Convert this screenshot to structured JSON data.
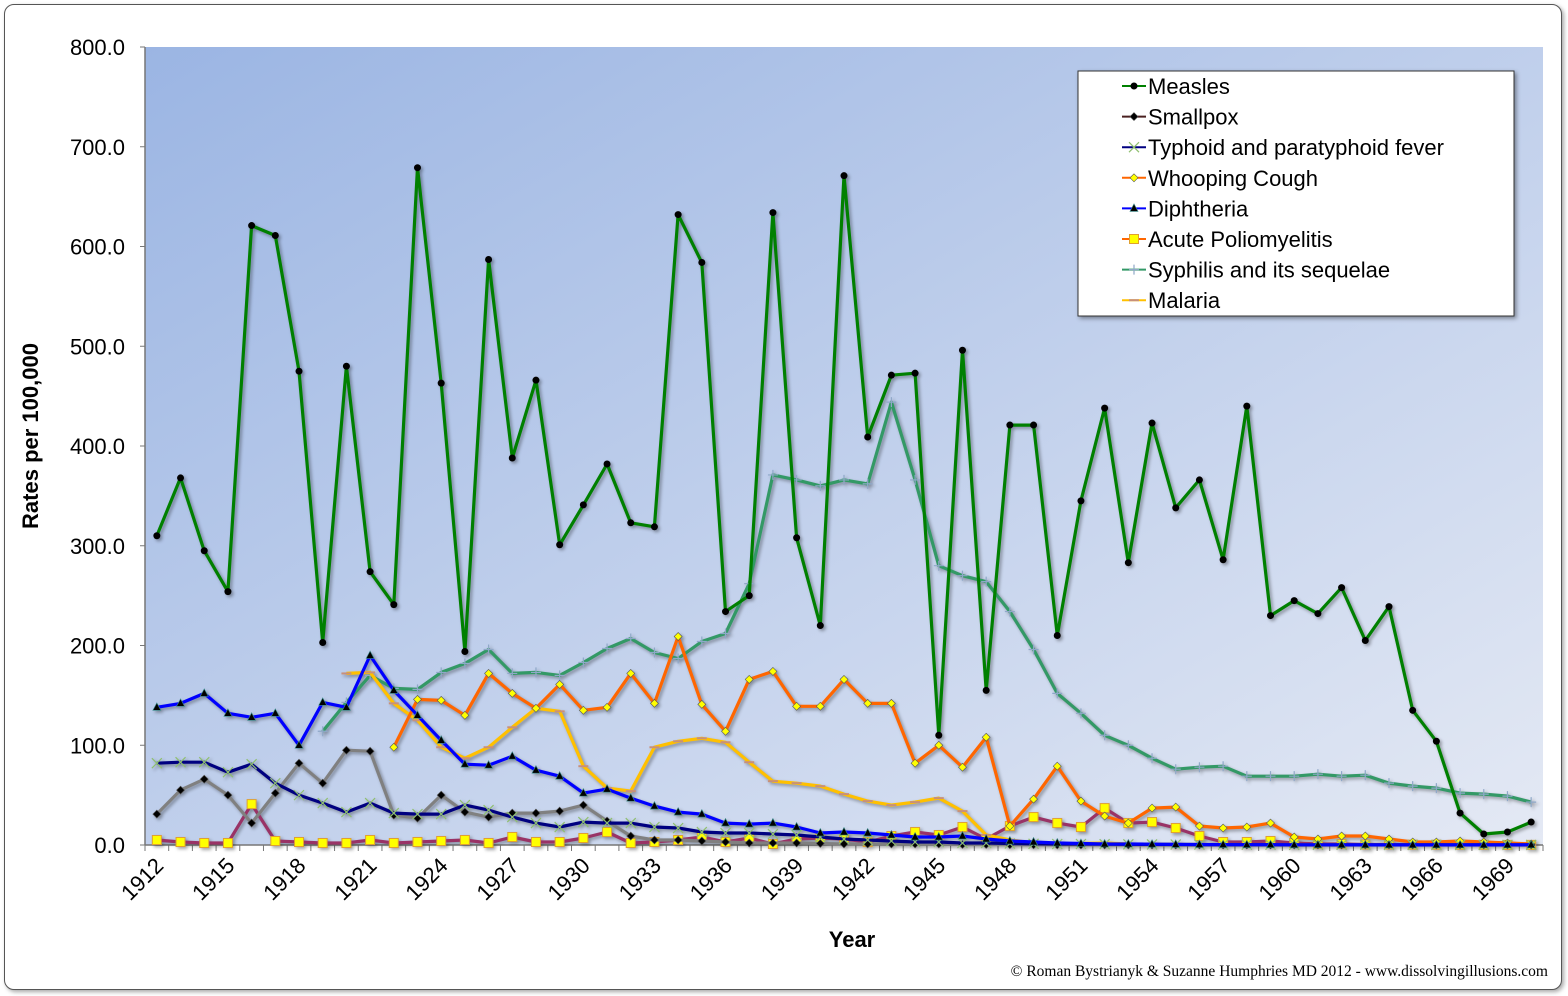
{
  "chart_data": {
    "type": "line",
    "title": "",
    "xlabel": "Year",
    "ylabel": "Rates per 100,000",
    "ylim": [
      0,
      800
    ],
    "yticks": [
      "0.0",
      "100.0",
      "200.0",
      "300.0",
      "400.0",
      "500.0",
      "600.0",
      "700.0",
      "800.0"
    ],
    "years": [
      1912,
      1913,
      1914,
      1915,
      1916,
      1917,
      1918,
      1919,
      1920,
      1921,
      1922,
      1923,
      1924,
      1925,
      1926,
      1927,
      1928,
      1929,
      1930,
      1931,
      1932,
      1933,
      1934,
      1935,
      1936,
      1937,
      1938,
      1939,
      1940,
      1941,
      1942,
      1943,
      1944,
      1945,
      1946,
      1947,
      1948,
      1949,
      1950,
      1951,
      1952,
      1953,
      1954,
      1955,
      1956,
      1957,
      1958,
      1959,
      1960,
      1961,
      1962,
      1963,
      1964,
      1965,
      1966,
      1967,
      1968,
      1969,
      1970
    ],
    "xtick_labels": [
      "1912",
      "1915",
      "1918",
      "1921",
      "1924",
      "1927",
      "1930",
      "1933",
      "1936",
      "1939",
      "1942",
      "1945",
      "1948",
      "1951",
      "1954",
      "1957",
      "1960",
      "1963",
      "1966",
      "1969"
    ],
    "grid": false,
    "legend_position": "top-right",
    "background": {
      "from": "#9bb5e3",
      "to": "#e4e9f4"
    },
    "series": [
      {
        "name": "Measles",
        "color": "#008000",
        "marker": "circle",
        "marker_color": "#000000",
        "values": [
          310,
          368,
          295,
          254,
          621,
          611,
          475,
          203,
          480,
          274,
          241,
          679,
          463,
          194,
          587,
          388,
          466,
          301,
          341,
          382,
          323,
          319,
          632,
          584,
          234,
          250,
          634,
          308,
          220,
          671,
          409,
          471,
          473,
          110,
          496,
          155,
          421,
          421,
          210,
          345,
          438,
          283,
          423,
          338,
          366,
          286,
          440,
          230,
          245,
          232,
          258,
          205,
          239,
          135,
          104,
          32,
          11,
          13,
          23
        ]
      },
      {
        "name": "Smallpox",
        "color": "#808080",
        "marker": "diamond",
        "marker_color": "#000000",
        "values": [
          31,
          55,
          66,
          50,
          22,
          52,
          82,
          62,
          95,
          94,
          30,
          27,
          50,
          33,
          28,
          32,
          32,
          34,
          40,
          24,
          9,
          5,
          5,
          4,
          3,
          2,
          2,
          2,
          1.5,
          1,
          1,
          1,
          1,
          1,
          0.5,
          0.5,
          0.3,
          0.2,
          0.1,
          0.1,
          0.1,
          0,
          0,
          0,
          0,
          0,
          0,
          0,
          0,
          0,
          0,
          0,
          0,
          0,
          0,
          0,
          0,
          0,
          0
        ]
      },
      {
        "name": "Typhoid and paratyphoid fever",
        "color": "#000080",
        "marker": "x",
        "marker_color": "#8fbf6f",
        "values": [
          82,
          83,
          83,
          73,
          81,
          62,
          50,
          42,
          33,
          42,
          32,
          31,
          31,
          40,
          35,
          28,
          22,
          18,
          23,
          22,
          22,
          18,
          17,
          13,
          12,
          12,
          11,
          10,
          8,
          6,
          5,
          4,
          3,
          3,
          2,
          2,
          1.5,
          1.2,
          1,
          1,
          0.8,
          0.7,
          0.6,
          0.5,
          0.4,
          0.3,
          0.3,
          0.3,
          0.2,
          0.2,
          0.2,
          0.2,
          0.1,
          0.1,
          0.1,
          0.1,
          0.1,
          0.1,
          0.1
        ]
      },
      {
        "name": "Whooping Cough",
        "color": "#ff6600",
        "marker": "diamond",
        "marker_color": "#ffff00",
        "values": [
          null,
          null,
          null,
          null,
          null,
          null,
          null,
          null,
          null,
          null,
          98,
          146,
          145,
          130,
          172,
          152,
          137,
          161,
          135,
          138,
          172,
          142,
          209,
          141,
          114,
          166,
          174,
          139,
          139,
          166,
          142,
          142,
          82,
          100,
          78,
          108,
          19,
          46,
          79,
          44,
          29,
          22,
          37,
          38,
          19,
          17,
          18,
          22,
          8,
          6,
          9,
          9,
          6,
          3,
          3,
          4,
          3,
          2,
          1
        ]
      },
      {
        "name": "Diphtheria",
        "color": "#0000ff",
        "marker": "triangle",
        "marker_color": "#000000",
        "values": [
          138,
          142,
          152,
          132,
          128,
          132,
          100,
          143,
          138,
          190,
          155,
          130,
          105,
          81,
          80,
          89,
          75,
          69,
          52,
          56,
          47,
          39,
          33,
          31,
          22,
          21,
          22,
          18,
          12,
          13,
          12,
          10,
          8,
          8,
          9,
          6,
          4,
          3,
          2,
          1.5,
          1,
          1,
          0.8,
          0.6,
          0.5,
          0.4,
          0.3,
          0.3,
          0.2,
          0.2,
          0.2,
          0.1,
          0.1,
          0.1,
          0.1,
          0.1,
          0.1,
          0.1,
          0.1
        ]
      },
      {
        "name": "Acute Poliomyelitis",
        "color": "#993366",
        "marker": "square",
        "marker_color": "#ffff00",
        "values": [
          5,
          3,
          2,
          2,
          41,
          4,
          3,
          2,
          2,
          5,
          2,
          3,
          4,
          5,
          2,
          8,
          3,
          3,
          7,
          13,
          2,
          3,
          5,
          8,
          3,
          7,
          1,
          6,
          7,
          6,
          3,
          9,
          13,
          10,
          18,
          6,
          19,
          28,
          22,
          18,
          37,
          22,
          23,
          17,
          9,
          3,
          3,
          4,
          2,
          1,
          1,
          0.5,
          0.5,
          0.3,
          0.3,
          0.2,
          0.2,
          0.1,
          0.1
        ]
      },
      {
        "name": "Syphilis and its sequelae",
        "color": "#339966",
        "marker": "plus",
        "marker_color": "#8fa8c8",
        "values": [
          null,
          null,
          null,
          null,
          null,
          null,
          null,
          114,
          143,
          170,
          157,
          156,
          173,
          182,
          196,
          172,
          173,
          170,
          183,
          197,
          207,
          193,
          187,
          204,
          212,
          262,
          371,
          366,
          360,
          366,
          362,
          444,
          366,
          280,
          270,
          264,
          234,
          196,
          152,
          132,
          110,
          100,
          87,
          76,
          78,
          79,
          69,
          69,
          69,
          71,
          69,
          70,
          62,
          59,
          57,
          52,
          51,
          49,
          43
        ]
      },
      {
        "name": "Malaria",
        "color": "#ffc000",
        "marker": "dash",
        "marker_color": "#c8907a",
        "values": [
          null,
          null,
          null,
          null,
          null,
          null,
          null,
          null,
          172,
          173,
          142,
          125,
          98,
          87,
          98,
          118,
          137,
          134,
          79,
          57,
          54,
          98,
          104,
          107,
          103,
          83,
          64,
          62,
          59,
          51,
          44,
          40,
          43,
          47,
          34,
          10,
          5,
          2,
          1,
          1.5,
          2,
          1,
          0.8,
          0.5,
          0.5,
          0.4,
          0.3,
          0.3,
          0.2,
          0.2,
          0.2,
          0.1,
          0.1,
          0.1,
          0.1,
          0.1,
          0.1,
          0.1,
          0
        ]
      }
    ]
  },
  "credit": "© Roman Bystrianyk & Suzanne Humphries MD 2012 - www.dissolvingillusions.com"
}
